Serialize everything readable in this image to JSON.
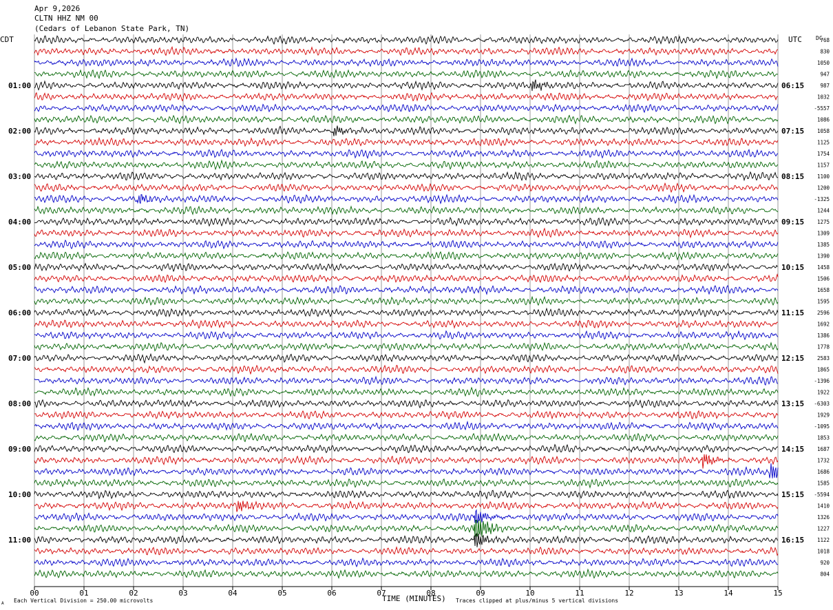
{
  "header": {
    "date": "Apr 9,2026",
    "station": "CLTN HHZ NM 00",
    "location": "(Cedars of Lebanon State Park, TN)"
  },
  "left_timezone": "CDT",
  "right_timezone": "UTC",
  "dc_label": "DC",
  "footer": {
    "scale_note": "Each Vertical Division =  250.00 microvolts",
    "x_axis_title": "TIME (MINUTES)",
    "clip_note": "Traces clipped at plus/minus 5 vertical divisions",
    "corner_mark": "A"
  },
  "colors": {
    "trace_cycle": [
      "#000000",
      "#d40000",
      "#0000c8",
      "#006400"
    ],
    "grid": "#555555"
  },
  "chart_data": {
    "type": "helicorder",
    "title": "CLTN HHZ NM 00",
    "xlabel": "TIME (MINUTES)",
    "xlim": [
      0,
      15
    ],
    "x_tick_labels": [
      "00",
      "01",
      "02",
      "03",
      "04",
      "05",
      "06",
      "07",
      "08",
      "09",
      "10",
      "11",
      "12",
      "13",
      "14",
      "15"
    ],
    "rows_per_hour": 4,
    "total_rows": 48,
    "left_hour_labels": [
      "01:00",
      "02:00",
      "03:00",
      "04:00",
      "05:00",
      "06:00",
      "07:00",
      "08:00",
      "09:00",
      "10:00",
      "11:00"
    ],
    "right_hour_labels": [
      "06:15",
      "07:15",
      "08:15",
      "09:15",
      "10:15",
      "11:15",
      "12:15",
      "13:15",
      "14:15",
      "15:15",
      "16:15"
    ],
    "dc_offsets": [
      "768",
      "830",
      "1050",
      "947",
      "987",
      "1032",
      "-5557",
      "1086",
      "1058",
      "1125",
      "1754",
      "1157",
      "1100",
      "1200",
      "-1325",
      "1244",
      "1275",
      "1309",
      "1385",
      "1390",
      "1458",
      "1506",
      "1658",
      "1595",
      "2596",
      "1692",
      "1386",
      "1778",
      "2583",
      "1865",
      "-1396",
      "1922",
      "-6303",
      "1929",
      "-1095",
      "1853",
      "1687",
      "1732",
      "1686",
      "1585",
      "-5594",
      "1410",
      "1326",
      "1227",
      "1122",
      "1018",
      "920",
      "804"
    ],
    "events": [
      {
        "row": 38,
        "minute": 14.85,
        "amp": 1.5
      },
      {
        "row": 37,
        "minute": 13.5,
        "amp": 1.1
      },
      {
        "row": 41,
        "minute": 4.1,
        "amp": 1.0
      },
      {
        "row": 43,
        "minute": 8.9,
        "amp": 2.6
      },
      {
        "row": 42,
        "minute": 8.9,
        "amp": 1.2
      },
      {
        "row": 44,
        "minute": 8.9,
        "amp": 1.4
      },
      {
        "row": 8,
        "minute": 6.05,
        "amp": 0.9
      },
      {
        "row": 4,
        "minute": 10.05,
        "amp": 1.0
      },
      {
        "row": 14,
        "minute": 2.1,
        "amp": 0.8
      }
    ]
  }
}
